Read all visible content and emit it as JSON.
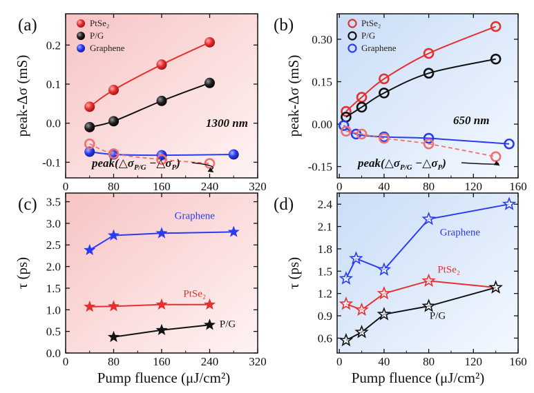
{
  "figure": {
    "x_axis_title": "Pump fluence (μJ/cm²)"
  },
  "chart_data": [
    {
      "panel": "(a)",
      "type": "line",
      "ylabel": "peak-Δσ (mS)",
      "xlim": [
        0,
        320
      ],
      "ylim": [
        -0.14,
        0.28
      ],
      "xticks": [
        0,
        80,
        160,
        240,
        320
      ],
      "yticks": [
        -0.1,
        0.0,
        0.1,
        0.2
      ],
      "ytick_labels": [
        "-0.1",
        "0.0",
        "0.1",
        "0.2"
      ],
      "background": "#f6c9c9",
      "marker": "ball",
      "legend": {
        "placement": "top-left",
        "entries": [
          {
            "label": "PtSe₂",
            "color": "#e53030"
          },
          {
            "label": "P/G",
            "color": "#111111"
          },
          {
            "label": "Graphene",
            "color": "#2a3cf0"
          }
        ]
      },
      "series": [
        {
          "name": "PtSe₂",
          "color": "#e53030",
          "x": [
            40,
            80,
            160,
            240
          ],
          "y": [
            0.042,
            0.085,
            0.15,
            0.207
          ]
        },
        {
          "name": "P/G",
          "color": "#111111",
          "x": [
            40,
            80,
            160,
            240
          ],
          "y": [
            -0.01,
            0.005,
            0.057,
            0.103
          ]
        },
        {
          "name": "Graphene",
          "color": "#2a3cf0",
          "x": [
            40,
            80,
            160,
            280
          ],
          "y": [
            -0.073,
            -0.08,
            -0.082,
            -0.08
          ]
        },
        {
          "name": "peak(ΔσP/G − ΔσP)",
          "color": "#f07070",
          "dashed": true,
          "open": true,
          "x": [
            40,
            80,
            160,
            240
          ],
          "y": [
            -0.053,
            -0.078,
            -0.093,
            -0.103
          ]
        }
      ],
      "annotations": {
        "wavelength": "1300 nm",
        "difference_label": "peak(△σ",
        "difference_sub_1": "P/G",
        "difference_mid": " −△σ",
        "difference_sub_2": "P",
        "difference_end": ")"
      }
    },
    {
      "panel": "(b)",
      "type": "line",
      "ylabel": "peak-Δσ (mS)",
      "xlim": [
        -2,
        160
      ],
      "ylim": [
        -0.19,
        0.39
      ],
      "xticks": [
        0,
        40,
        80,
        120,
        160
      ],
      "yticks": [
        -0.15,
        0.0,
        0.15,
        0.3
      ],
      "ytick_labels": [
        "-0.15",
        "0.00",
        "0.15",
        "0.30"
      ],
      "background": "#cfe0f6",
      "marker": "ring",
      "legend": {
        "placement": "top-left",
        "entries": [
          {
            "label": "PtSe₂",
            "color": "#e53030"
          },
          {
            "label": "P/G",
            "color": "#111111"
          },
          {
            "label": "Graphene",
            "color": "#2a3cf0"
          }
        ]
      },
      "series": [
        {
          "name": "PtSe₂",
          "color": "#e53030",
          "x": [
            6,
            20,
            40,
            80,
            140
          ],
          "y": [
            0.045,
            0.095,
            0.16,
            0.25,
            0.345
          ]
        },
        {
          "name": "P/G",
          "color": "#111111",
          "x": [
            6,
            20,
            40,
            80,
            140
          ],
          "y": [
            0.025,
            0.06,
            0.11,
            0.18,
            0.23
          ]
        },
        {
          "name": "Graphene",
          "color": "#2a3cf0",
          "x": [
            4,
            15,
            40,
            80,
            152
          ],
          "y": [
            -0.005,
            -0.035,
            -0.045,
            -0.05,
            -0.07
          ]
        },
        {
          "name": "peak(ΔσP/G − ΔσP)",
          "color": "#f07070",
          "dashed": true,
          "open": true,
          "x": [
            6,
            20,
            40,
            80,
            140
          ],
          "y": [
            -0.025,
            -0.035,
            -0.05,
            -0.07,
            -0.115
          ]
        }
      ],
      "annotations": {
        "wavelength": "650 nm",
        "difference_label": "peak(△σ",
        "difference_sub_1": "P/G",
        "difference_mid": " −△σ",
        "difference_sub_2": "P",
        "difference_end": ")"
      }
    },
    {
      "panel": "(c)",
      "type": "line",
      "ylabel": "τ (ps)",
      "xlim": [
        0,
        320
      ],
      "ylim": [
        0.0,
        3.7
      ],
      "xticks": [
        0,
        80,
        160,
        240,
        320
      ],
      "yticks": [
        0.0,
        0.5,
        1.0,
        1.5,
        2.0,
        2.5,
        3.0,
        3.5
      ],
      "ytick_labels": [
        "0.0",
        "0.5",
        "1.0",
        "1.5",
        "2.0",
        "2.5",
        "3.0",
        "3.5"
      ],
      "background": "#f6c9c9",
      "marker": "star",
      "series": [
        {
          "name": "Graphene",
          "color": "#2a3cf0",
          "x": [
            40,
            80,
            160,
            280
          ],
          "y": [
            2.38,
            2.72,
            2.77,
            2.8
          ]
        },
        {
          "name": "PtSe₂",
          "color": "#e53030",
          "x": [
            40,
            80,
            160,
            240
          ],
          "y": [
            1.07,
            1.08,
            1.12,
            1.12
          ]
        },
        {
          "name": "P/G",
          "color": "#111111",
          "x": [
            80,
            160,
            240
          ],
          "y": [
            0.37,
            0.53,
            0.65
          ]
        }
      ],
      "series_labels": [
        {
          "text": "Graphene",
          "color": "#2a3cf0",
          "at": [
            215,
            3.1
          ]
        },
        {
          "text": "PtSe₂",
          "color": "#e53030",
          "at": [
            215,
            1.3
          ]
        },
        {
          "text": "P/G",
          "color": "#111111",
          "at": [
            270,
            0.6
          ]
        }
      ]
    },
    {
      "panel": "(d)",
      "type": "line",
      "ylabel": "τ (ps)",
      "xlim": [
        -2,
        160
      ],
      "ylim": [
        0.4,
        2.55
      ],
      "xticks": [
        0,
        40,
        80,
        120,
        160
      ],
      "yticks": [
        0.6,
        0.9,
        1.2,
        1.5,
        1.8,
        2.1,
        2.4
      ],
      "ytick_labels": [
        "0.6",
        "0.9",
        "1.2",
        "1.5",
        "1.8",
        "2.1",
        "2.4"
      ],
      "background": "#cfe0f6",
      "marker": "open-star",
      "series": [
        {
          "name": "Graphene",
          "color": "#2a3cf0",
          "x": [
            6,
            15,
            40,
            80,
            152
          ],
          "y": [
            1.4,
            1.67,
            1.52,
            2.2,
            2.4
          ]
        },
        {
          "name": "PtSe₂",
          "color": "#e53030",
          "x": [
            6,
            20,
            40,
            80,
            140
          ],
          "y": [
            1.06,
            0.98,
            1.2,
            1.37,
            1.28
          ]
        },
        {
          "name": "P/G",
          "color": "#111111",
          "x": [
            6,
            20,
            40,
            80,
            140
          ],
          "y": [
            0.57,
            0.68,
            0.92,
            1.03,
            1.28
          ]
        }
      ],
      "series_labels": [
        {
          "text": "Graphene",
          "color": "#2a3cf0",
          "at": [
            108,
            1.98
          ]
        },
        {
          "text": "PtSe₂",
          "color": "#e53030",
          "at": [
            98,
            1.48
          ]
        },
        {
          "text": "P/G",
          "color": "#111111",
          "at": [
            88,
            0.86
          ]
        }
      ]
    }
  ]
}
